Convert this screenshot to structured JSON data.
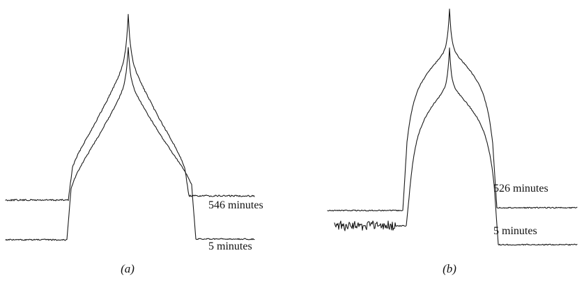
{
  "chart_data": [
    {
      "type": "line",
      "panel_label": "(a)",
      "grid": false,
      "series": [
        {
          "label": "546 minutes"
        },
        {
          "label": "5 minutes"
        }
      ]
    },
    {
      "type": "line",
      "panel_label": "(b)",
      "grid": false,
      "series": [
        {
          "label": "526 minutes"
        },
        {
          "label": "5 minutes"
        }
      ]
    }
  ],
  "colors": {
    "trace": "#1a1a1a",
    "background": "#ffffff"
  }
}
